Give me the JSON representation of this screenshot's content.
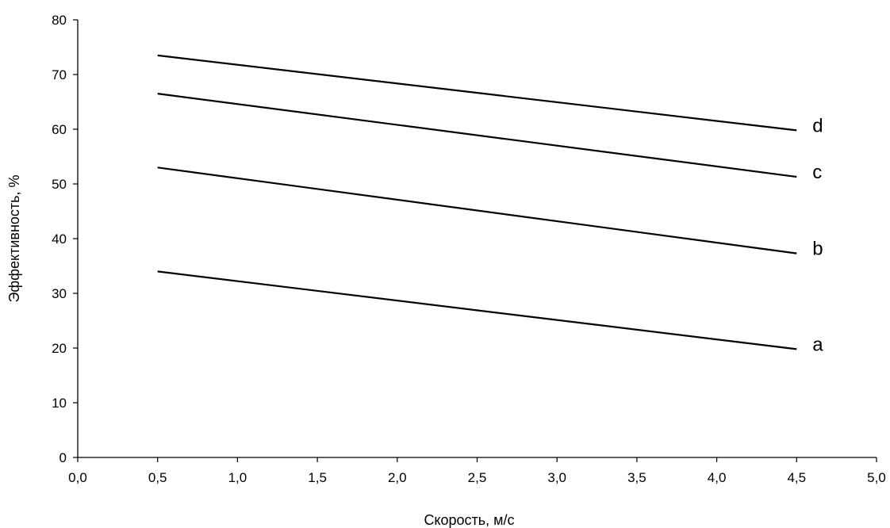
{
  "chart_data": {
    "type": "line",
    "title": "",
    "xlabel": "Скорость, м/с",
    "ylabel": "Эффективность, %",
    "xlim": [
      0,
      5
    ],
    "ylim": [
      0,
      80
    ],
    "x_ticks": [
      0,
      0.5,
      1,
      1.5,
      2,
      2.5,
      3,
      3.5,
      4,
      4.5,
      5
    ],
    "x_tick_labels": [
      "0,0",
      "0,5",
      "1,0",
      "1,5",
      "2,0",
      "2,5",
      "3,0",
      "3,5",
      "4,0",
      "4,5",
      "5,0"
    ],
    "y_ticks": [
      0,
      10,
      20,
      30,
      40,
      50,
      60,
      70,
      80
    ],
    "y_tick_labels": [
      "0",
      "10",
      "20",
      "30",
      "40",
      "50",
      "60",
      "70",
      "80"
    ],
    "grid": false,
    "legend": "none",
    "series": [
      {
        "name": "a",
        "x": [
          0.5,
          4.5
        ],
        "y": [
          34,
          19.8
        ]
      },
      {
        "name": "b",
        "x": [
          0.5,
          4.5
        ],
        "y": [
          53,
          37.3
        ]
      },
      {
        "name": "c",
        "x": [
          0.5,
          4.5
        ],
        "y": [
          66.5,
          51.3
        ]
      },
      {
        "name": "d",
        "x": [
          0.5,
          4.5
        ],
        "y": [
          73.5,
          59.8
        ]
      }
    ],
    "colors": {
      "line": "#000000",
      "axis": "#000000",
      "background": "#ffffff"
    }
  }
}
